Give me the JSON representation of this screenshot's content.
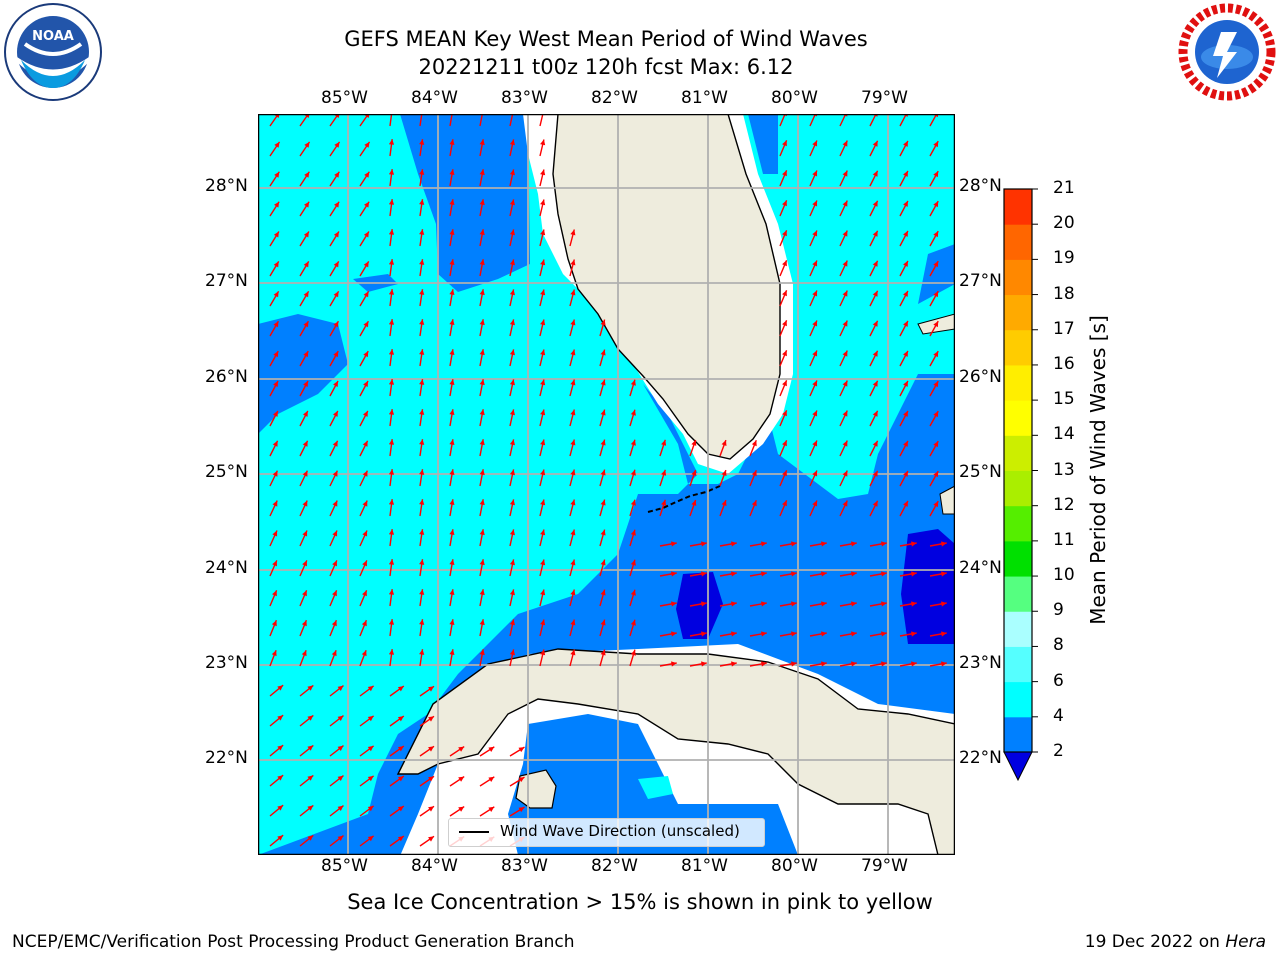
{
  "title": {
    "line1": "GEFS MEAN Key West Mean Period of Wind Waves",
    "line2": "20221211 t00z 120h fcst   Max: 6.12"
  },
  "logos": {
    "left": {
      "name": "noaa-logo",
      "text": "NOAA",
      "ring_text": "NATIONAL OCEANIC AND ATMOSPHERIC ADMINISTRATION · U.S. DEPARTMENT OF COMMERCE"
    },
    "right": {
      "name": "nws-logo",
      "ring_text": "NATIONAL WEATHER SERVICE"
    }
  },
  "map": {
    "lon_labels": [
      "85°W",
      "84°W",
      "83°W",
      "82°W",
      "81°W",
      "80°W",
      "79°W"
    ],
    "lat_labels": [
      "28°N",
      "27°N",
      "26°N",
      "25°N",
      "24°N",
      "23°N",
      "22°N"
    ],
    "gridlines": true,
    "land_color": "#eeecdd",
    "arrow_color": "#ff0000",
    "contour_colors": {
      "2-4": "#0080ff",
      "4-6": "#00ffff",
      "below-2": "#0000e0"
    },
    "legend": {
      "label": "Wind Wave Direction (unscaled)",
      "placement": "lower-center"
    }
  },
  "colorbar": {
    "label": "Mean Period of Wind Waves [s]",
    "ticks": [
      "2",
      "4",
      "6",
      "8",
      "9",
      "10",
      "11",
      "12",
      "13",
      "14",
      "15",
      "16",
      "17",
      "18",
      "19",
      "20",
      "21"
    ],
    "colors": [
      "#0080ff",
      "#00ffff",
      "#55ffff",
      "#aaffff",
      "#55ff80",
      "#00e000",
      "#55ee00",
      "#aaee00",
      "#ccee00",
      "#ffff00",
      "#ffee00",
      "#ffcc00",
      "#ffaa00",
      "#ff8800",
      "#ff6600",
      "#ff3300",
      "#ff0000"
    ],
    "extend_color": "#0000e0"
  },
  "caption": "Sea Ice Concentration > 15% is shown in pink to yellow",
  "footer": {
    "left": "NCEP/EMC/Verification Post Processing Product Generation Branch",
    "right_prefix": "19 Dec 2022 on ",
    "right_host": "Hera"
  }
}
